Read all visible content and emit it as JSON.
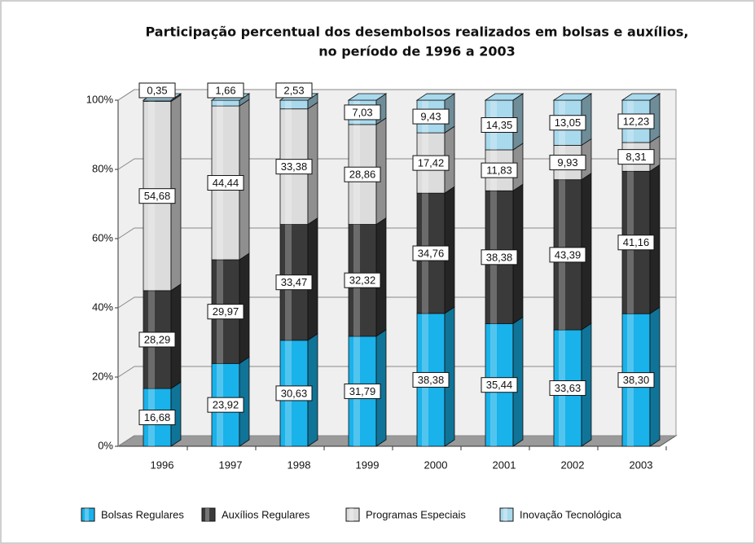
{
  "chart_data": {
    "type": "stacked_bar_3d",
    "title": "Participação percentual dos desembolsos realizados em bolsas e auxílios,",
    "subtitle": "no período de 1996 a 2003",
    "categories": [
      "1996",
      "1997",
      "1998",
      "1999",
      "2000",
      "2001",
      "2002",
      "2003"
    ],
    "series": [
      {
        "name": "Bolsas Regulares",
        "color": "#19b2ea",
        "values": [
          16.68,
          23.92,
          30.63,
          31.79,
          38.38,
          35.44,
          33.63,
          38.3
        ],
        "value_labels": [
          "16,68",
          "23,92",
          "30,63",
          "31,79",
          "38,38",
          "35,44",
          "33,63",
          "38,30"
        ]
      },
      {
        "name": "Auxílios Regulares",
        "color": "#3a3a3a",
        "values": [
          28.29,
          29.97,
          33.47,
          32.32,
          34.76,
          38.38,
          43.39,
          41.16
        ],
        "value_labels": [
          "28,29",
          "29,97",
          "33,47",
          "32,32",
          "34,76",
          "38,38",
          "43,39",
          "41,16"
        ]
      },
      {
        "name": "Programas Especiais",
        "color": "#dcdcdc",
        "values": [
          54.68,
          44.44,
          33.38,
          28.86,
          17.42,
          11.83,
          9.93,
          8.31
        ],
        "value_labels": [
          "54,68",
          "44,44",
          "33,38",
          "28,86",
          "17,42",
          "11,83",
          "9,93",
          "8,31"
        ]
      },
      {
        "name": "Inovação Tecnológica",
        "color": "#a9d9ec",
        "values": [
          0.35,
          1.66,
          2.53,
          7.03,
          9.43,
          14.35,
          13.05,
          12.23
        ],
        "value_labels": [
          "0,35",
          "1,66",
          "2,53",
          "7,03",
          "9,43",
          "14,35",
          "13,05",
          "12,23"
        ]
      }
    ],
    "ylim": [
      0,
      100
    ],
    "yticks": [
      {
        "value": 0,
        "label": "0%"
      },
      {
        "value": 20,
        "label": "20%"
      },
      {
        "value": 40,
        "label": "40%"
      },
      {
        "value": 60,
        "label": "60%"
      },
      {
        "value": 80,
        "label": "80%"
      },
      {
        "value": 100,
        "label": "100%"
      }
    ],
    "grid": true,
    "legend": "bottom"
  }
}
